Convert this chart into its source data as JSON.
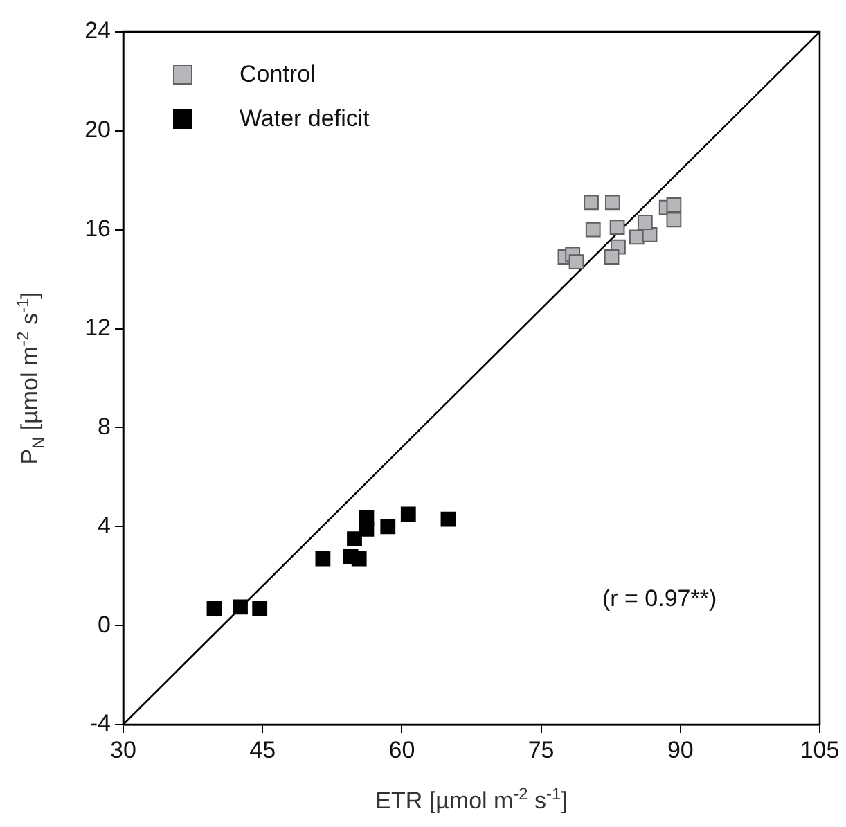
{
  "chart_data": {
    "type": "scatter",
    "xlabel": "ETR [µmol m$^{-2}$ s$^{-1}$]",
    "ylabel": "P$_{N}$ [µmol m$^{-2}$ s$^{-1}$]",
    "xlim": [
      30,
      105
    ],
    "xticks": [
      30,
      45,
      60,
      75,
      90,
      105
    ],
    "ylim": [
      -4,
      24
    ],
    "yticks": [
      -4,
      0,
      4,
      8,
      12,
      16,
      20,
      24
    ],
    "grid": false,
    "legend": "top left",
    "marker": "square",
    "annotations": [
      "(r = 0.97**)"
    ],
    "series": [
      {
        "name": "Control",
        "color": "#b5b7ba",
        "x": [
          80.4,
          82.7,
          80.6,
          83.2,
          83.3,
          82.6,
          85.3,
          86.7,
          86.2,
          88.5,
          89.3,
          89.3,
          77.6,
          78.4,
          78.8
        ],
        "values": [
          17.1,
          17.1,
          16.0,
          16.1,
          15.3,
          14.9,
          15.7,
          15.8,
          16.3,
          16.9,
          17.0,
          16.4,
          14.9,
          15.0,
          14.7
        ]
      },
      {
        "name": "Water deficit",
        "color": "#000000",
        "x": [
          39.8,
          42.6,
          44.7,
          51.5,
          54.5,
          55.4,
          54.9,
          56.2,
          56.2,
          58.5,
          60.7,
          65.0
        ],
        "values": [
          0.7,
          0.75,
          0.7,
          2.7,
          2.8,
          2.7,
          3.5,
          4.35,
          3.9,
          4.0,
          4.5,
          4.3
        ]
      },
      {
        "type": "line",
        "color": "#000000",
        "marker": "none",
        "x": [
          30,
          105
        ],
        "values": [
          -4,
          24
        ]
      }
    ]
  }
}
